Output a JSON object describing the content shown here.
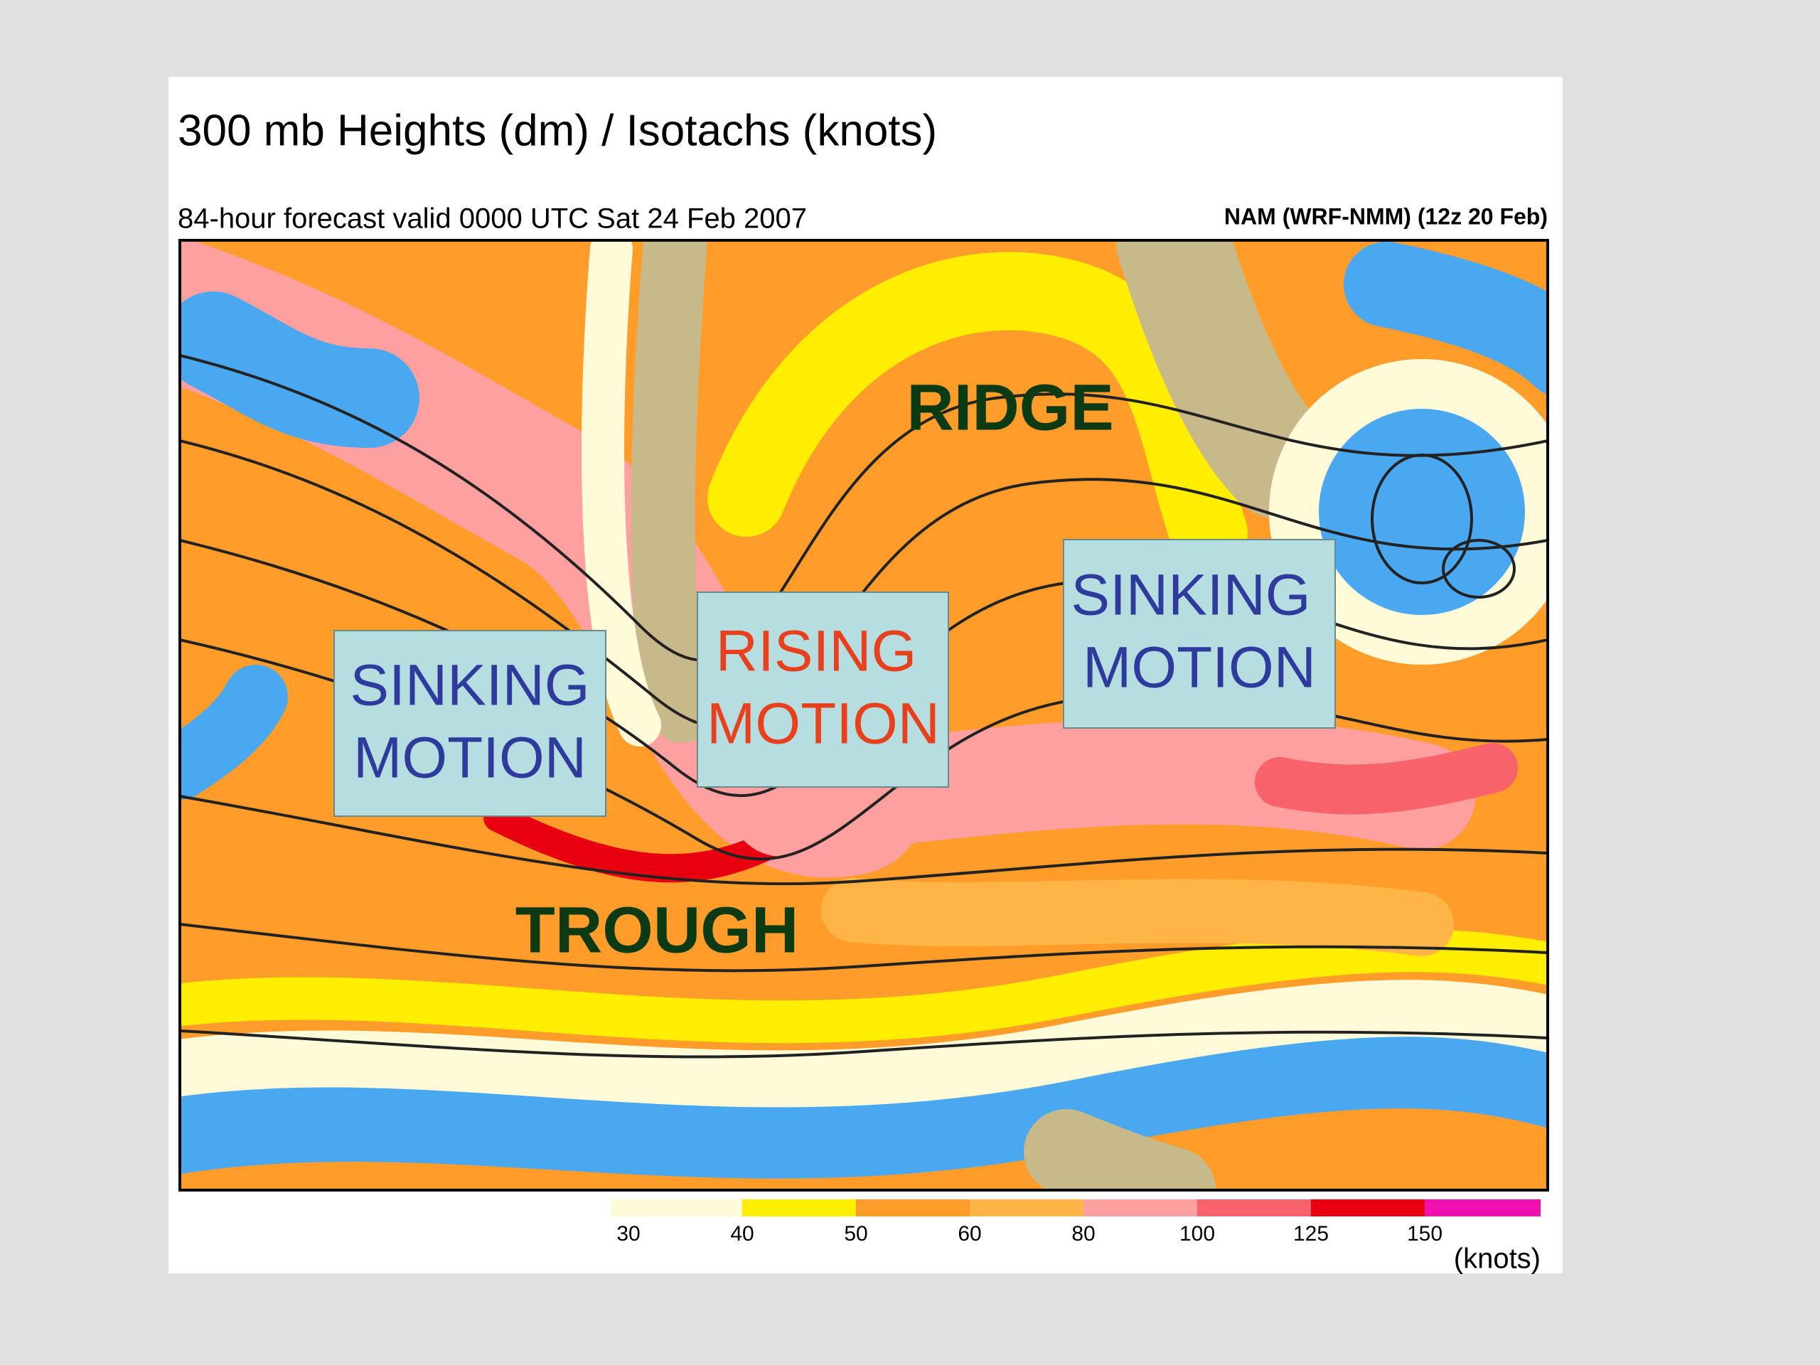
{
  "slide": {
    "title": "300 mb Heights (dm) / Isotachs (knots)",
    "subtitle": "84-hour forecast valid 0000 UTC Sat 24 Feb 2007",
    "model": "NAM (WRF-NMM) (12z 20 Feb)",
    "annotations": {
      "ridge": "RIDGE",
      "trough": "TROUGH",
      "left_box": [
        "SINKING",
        "MOTION"
      ],
      "center_box": [
        "RISING",
        "MOTION"
      ],
      "right_box": [
        "SINKING",
        "MOTION"
      ]
    },
    "colorbar": {
      "ticks": [
        30,
        40,
        50,
        60,
        80,
        100,
        125,
        150
      ],
      "colors": [
        "#fffbd9",
        "#ffee00",
        "#ff9c2a",
        "#ffb545",
        "#ffa0a0",
        "#f8626a",
        "#e80010",
        "#f010b0"
      ],
      "unit": "(knots)"
    }
  }
}
